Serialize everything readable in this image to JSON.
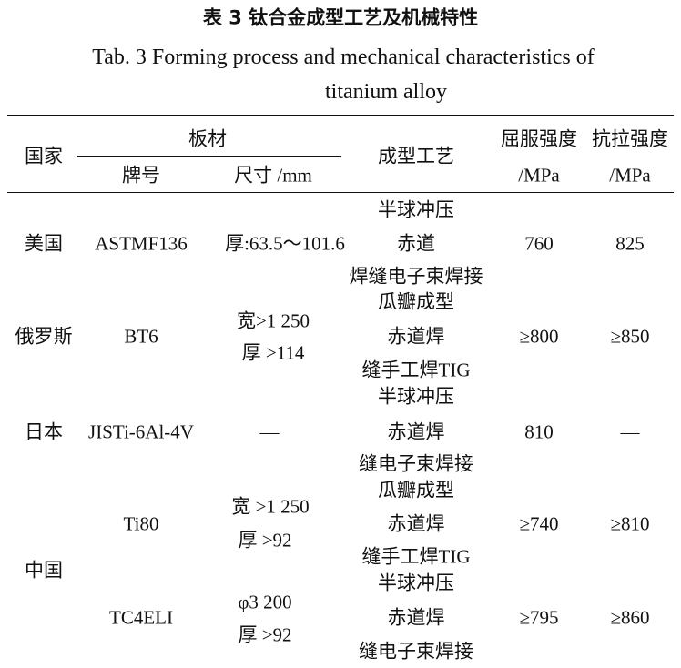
{
  "caption": {
    "cn": "表 3  钛合金成型工艺及机械特性",
    "en_line1": "Tab. 3   Forming process and mechanical characteristics of",
    "en_line2": "titanium alloy"
  },
  "header": {
    "country": "国家",
    "plate": "板材",
    "grade": "牌号",
    "size": "尺寸 /mm",
    "process": "成型工艺",
    "yield": "屈服强度",
    "yield_unit": "/MPa",
    "tensile": "抗拉强度",
    "tensile_unit": "/MPa"
  },
  "rows": [
    {
      "country": "美国",
      "grade": "ASTMF136",
      "size": [
        "厚:63.5～101.6"
      ],
      "process": [
        "半球冲压",
        "赤道",
        "焊缝电子束焊接"
      ],
      "yield": "760",
      "tensile": "825"
    },
    {
      "country": "俄罗斯",
      "grade": "BT6",
      "size": [
        "宽>1 250",
        "厚 >114"
      ],
      "process": [
        "瓜瓣成型",
        "赤道焊",
        "缝手工焊TIG"
      ],
      "yield": "≥800",
      "tensile": "≥850"
    },
    {
      "country": "日本",
      "grade": "JISTi-6Al-4V",
      "size": [
        "—"
      ],
      "process": [
        "半球冲压",
        "赤道焊",
        "缝电子束焊接"
      ],
      "yield": "810",
      "tensile": "—"
    },
    {
      "country": "中国",
      "grade": "Ti80",
      "size": [
        "宽 >1 250",
        "厚 >92"
      ],
      "process": [
        "瓜瓣成型",
        "赤道焊",
        "缝手工焊TIG"
      ],
      "yield": "≥740",
      "tensile": "≥810"
    },
    {
      "country": "",
      "grade": "TC4ELI",
      "size": [
        "φ3 200",
        "厚 >92"
      ],
      "process": [
        "半球冲压",
        "赤道焊",
        "缝电子束焊接"
      ],
      "yield": "≥795",
      "tensile": "≥860"
    }
  ]
}
